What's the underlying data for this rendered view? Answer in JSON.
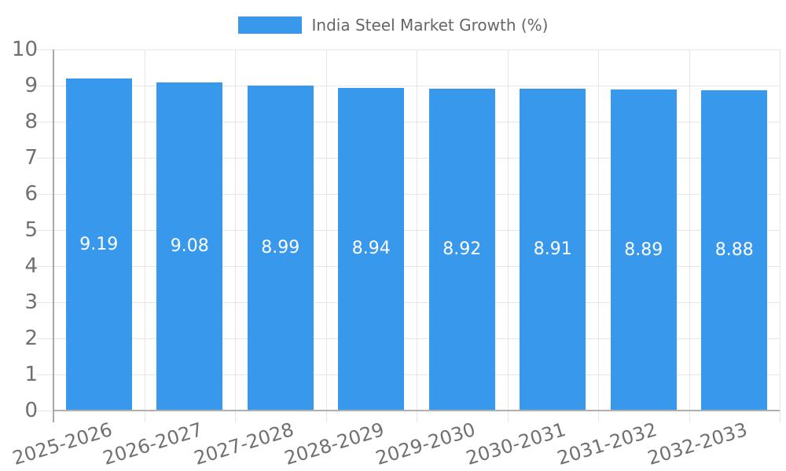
{
  "chart_data": {
    "type": "bar",
    "title": "India Steel Market Growth (%)",
    "series_name": "India Steel Market Growth (%)",
    "categories": [
      "2025-2026",
      "2026-2027",
      "2027-2028",
      "2028-2029",
      "2029-2030",
      "2030-2031",
      "2031-2032",
      "2032-2033"
    ],
    "values": [
      9.19,
      9.08,
      8.99,
      8.94,
      8.92,
      8.91,
      8.89,
      8.88
    ],
    "value_labels": [
      "9.19",
      "9.08",
      "8.99",
      "8.94",
      "8.92",
      "8.91",
      "8.89",
      "8.88"
    ],
    "xlabel": "",
    "ylabel": "",
    "ylim": [
      0,
      10
    ],
    "ytick_step": 1,
    "yticks": [
      "0",
      "1",
      "2",
      "3",
      "4",
      "5",
      "6",
      "7",
      "8",
      "9",
      "10"
    ],
    "grid": true,
    "legend_position": "top"
  },
  "colors": {
    "bar": "#3899EC",
    "bar_label": "#FFFFFF",
    "grid_line": "#E5E5E5",
    "axis_line": "#A8A8A8",
    "zero_line": "#B0B0B0",
    "tick_label": "#707070",
    "legend_text": "#666666",
    "background": "#FFFFFF"
  }
}
